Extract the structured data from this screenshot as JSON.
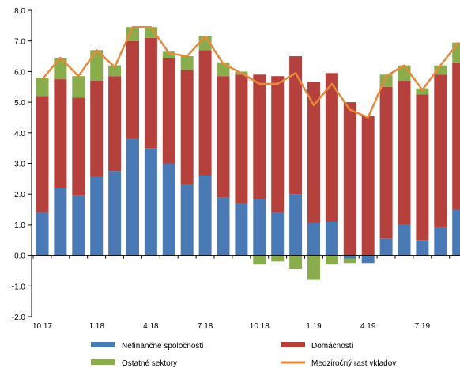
{
  "chart_data": {
    "type": "bar",
    "stacked": true,
    "categories": [
      "10.17",
      "11.17",
      "12.17",
      "1.18",
      "2.18",
      "3.18",
      "4.18",
      "5.18",
      "6.18",
      "7.18",
      "8.18",
      "9.18",
      "10.18",
      "11.18",
      "12.18",
      "1.19",
      "2.19",
      "3.19",
      "4.19",
      "5.19",
      "6.19",
      "7.19",
      "8.19",
      "9.19"
    ],
    "x_tick_labels": [
      "10.17",
      "1.18",
      "4.18",
      "7.18",
      "10.18",
      "1.19",
      "4.19",
      "7.19"
    ],
    "series": [
      {
        "name": "Nefinančné spoločnosti",
        "color": "#4a7ab5",
        "values": [
          1.4,
          2.2,
          1.95,
          2.55,
          2.75,
          3.8,
          3.5,
          3.0,
          2.3,
          2.6,
          1.9,
          1.7,
          1.85,
          1.4,
          2.0,
          1.05,
          1.1,
          -0.1,
          -0.25,
          0.55,
          1.0,
          0.5,
          0.9,
          1.5
        ]
      },
      {
        "name": "Domácnosti",
        "color": "#b5403c",
        "values": [
          3.8,
          3.55,
          3.2,
          3.15,
          3.1,
          3.2,
          3.6,
          3.45,
          3.75,
          4.1,
          3.95,
          4.2,
          4.05,
          4.45,
          4.5,
          4.6,
          4.85,
          5.0,
          4.55,
          4.95,
          4.7,
          4.75,
          5.0,
          4.8
        ]
      },
      {
        "name": "Ostatné sektory",
        "color": "#8aad4c",
        "values": [
          0.6,
          0.7,
          0.7,
          1.0,
          0.35,
          0.45,
          0.35,
          0.2,
          0.45,
          0.45,
          0.45,
          0.1,
          -0.3,
          -0.2,
          -0.45,
          -0.8,
          -0.3,
          -0.15,
          0.0,
          0.4,
          0.5,
          0.2,
          0.3,
          0.65
        ]
      }
    ],
    "line": {
      "name": "Medziročný rast vkladov",
      "color": "#e8893a",
      "values": [
        5.75,
        6.45,
        5.85,
        6.7,
        6.15,
        7.45,
        7.45,
        6.6,
        6.5,
        7.15,
        6.25,
        5.95,
        5.6,
        5.6,
        5.95,
        4.9,
        5.6,
        4.75,
        4.5,
        5.85,
        6.2,
        5.4,
        6.2,
        6.95
      ]
    },
    "ylim": [
      -2.0,
      8.0
    ],
    "yticks": [
      "-2.0",
      "-1.0",
      "0.0",
      "1.0",
      "2.0",
      "3.0",
      "4.0",
      "5.0",
      "6.0",
      "7.0",
      "8.0"
    ],
    "legend_position": "bottom",
    "grid": false
  }
}
